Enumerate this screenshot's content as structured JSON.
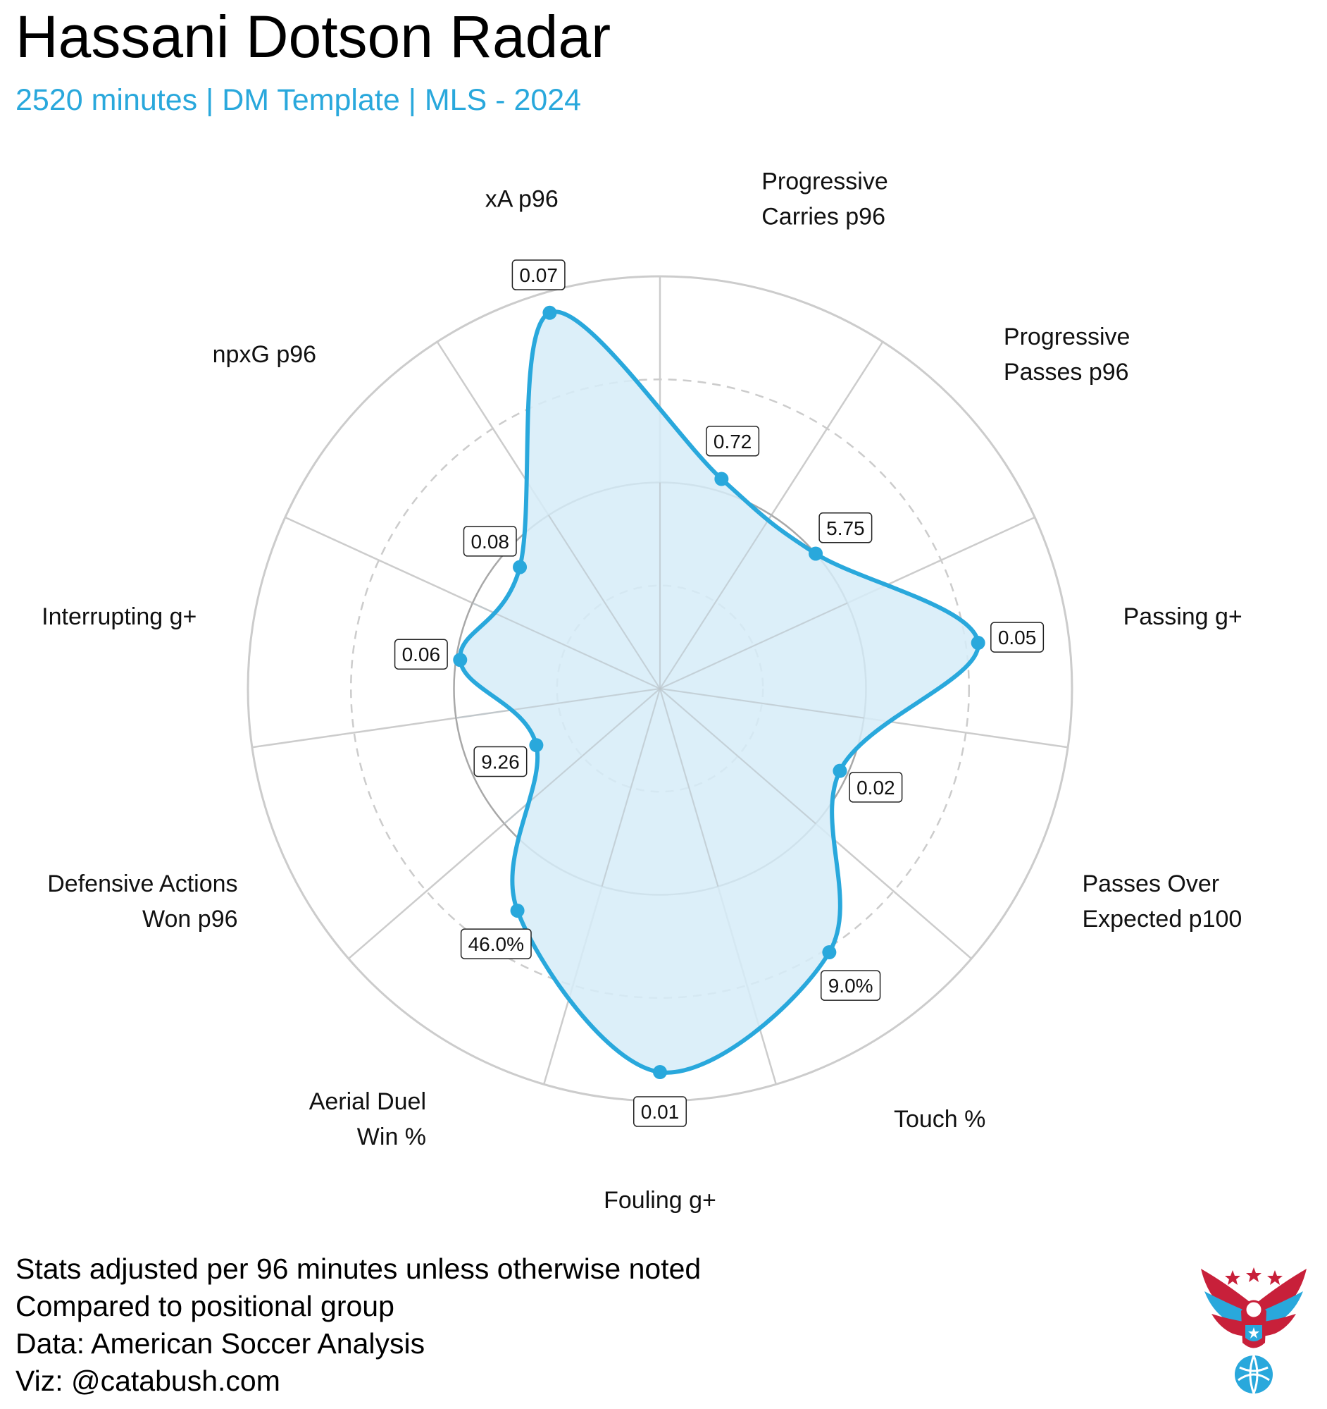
{
  "title": "Hassani Dotson Radar",
  "subtitle": "2520 minutes | DM Template | MLS - 2024",
  "chart_data": {
    "type": "radar",
    "metrics": [
      {
        "label": [
          "Progressive",
          "Carries p96"
        ],
        "value_label": "0.72",
        "percentile": 0.53
      },
      {
        "label": [
          "Progressive",
          "Passes p96"
        ],
        "value_label": "5.75",
        "percentile": 0.5
      },
      {
        "label": [
          "Passing g+"
        ],
        "value_label": "0.05",
        "percentile": 0.78
      },
      {
        "label": [
          "Passes Over",
          "Expected p100"
        ],
        "value_label": "0.02",
        "percentile": 0.48
      },
      {
        "label": [
          "Touch %"
        ],
        "value_label": "9.0%",
        "percentile": 0.76
      },
      {
        "label": [
          "Fouling g+"
        ],
        "value_label": "0.01",
        "percentile": 0.93
      },
      {
        "label": [
          "Aerial Duel",
          "Win %"
        ],
        "value_label": "46.0%",
        "percentile": 0.64
      },
      {
        "label": [
          "Defensive Actions",
          "Won p96"
        ],
        "value_label": "9.26",
        "percentile": 0.33
      },
      {
        "label": [
          "Interrupting g+"
        ],
        "value_label": "0.06",
        "percentile": 0.49
      },
      {
        "label": [
          "npxG p96"
        ],
        "value_label": "0.08",
        "percentile": 0.45
      },
      {
        "label": [
          "xA p96"
        ],
        "value_label": "0.07",
        "percentile": 0.95
      }
    ],
    "percentile_range": [
      0,
      1
    ],
    "reference_rings": [
      0.25,
      0.5,
      0.75,
      1.0
    ],
    "fill_color": "#d6ecf8",
    "line_color": "#29a8dc",
    "grid_color": "#cccccc"
  },
  "footer": {
    "lines": [
      "Stats adjusted per 96 minutes unless otherwise noted",
      "Compared to positional group",
      "Data: American Soccer Analysis",
      "Viz: @catabush.com"
    ]
  },
  "logo": {
    "name": "eagle-soccer-logo"
  }
}
